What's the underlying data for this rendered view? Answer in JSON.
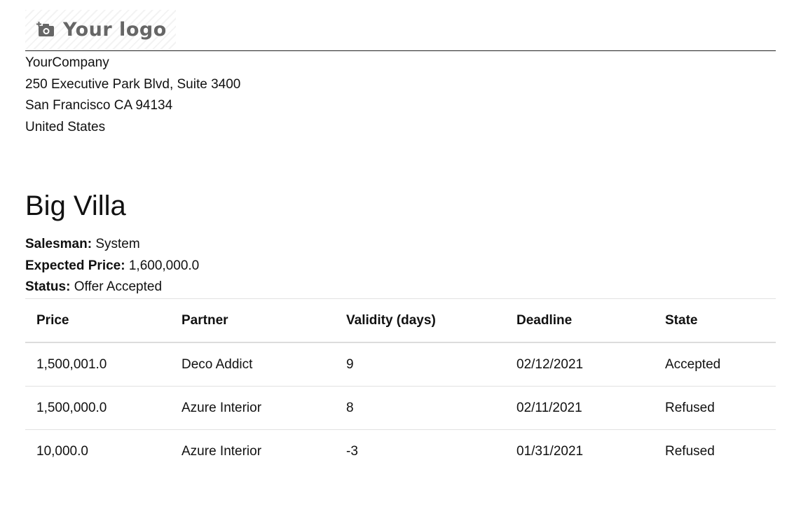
{
  "logo": {
    "text": "Your logo",
    "icon": "camera-plus-icon"
  },
  "company": {
    "name": "YourCompany",
    "street": "250 Executive Park Blvd, Suite 3400",
    "city": "San Francisco CA 94134",
    "country": "United States"
  },
  "property": {
    "title": "Big Villa",
    "salesman_label": "Salesman:",
    "salesman": "System",
    "price_label": "Expected Price:",
    "price": "1,600,000.0",
    "status_label": "Status:",
    "status": "Offer Accepted"
  },
  "offers": {
    "headers": [
      "Price",
      "Partner",
      "Validity (days)",
      "Deadline",
      "State"
    ],
    "rows": [
      [
        "1,500,001.0",
        "Deco Addict",
        "9",
        "02/12/2021",
        "Accepted"
      ],
      [
        "1,500,000.0",
        "Azure Interior",
        "8",
        "02/11/2021",
        "Refused"
      ],
      [
        "10,000.0",
        "Azure Interior",
        "-3",
        "01/31/2021",
        "Refused"
      ]
    ]
  }
}
